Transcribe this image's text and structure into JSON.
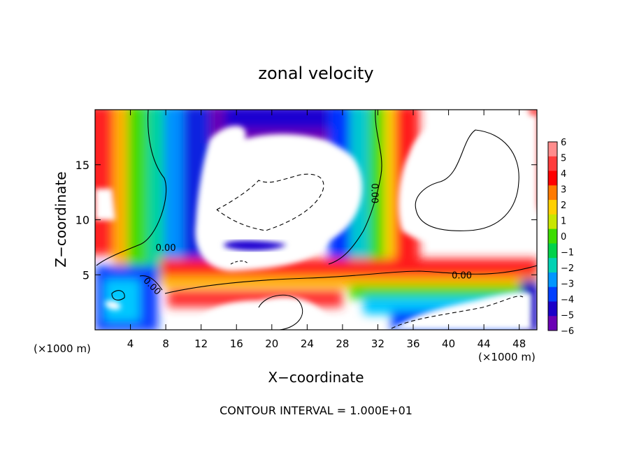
{
  "chart_data": {
    "type": "heatmap",
    "title": "zonal velocity",
    "xlabel": "X−coordinate",
    "ylabel": "Z−coordinate",
    "x_unit_left": "(×1000 m)",
    "x_unit_right": "(×1000 m)",
    "xlim": [
      0,
      50
    ],
    "ylim": [
      0,
      20
    ],
    "x_ticks": [
      4,
      8,
      12,
      16,
      20,
      24,
      28,
      32,
      36,
      40,
      44,
      48
    ],
    "y_ticks": [
      5,
      10,
      15
    ],
    "colorbar": {
      "min": -6,
      "max": 6,
      "labels": [
        "6",
        "5",
        "4",
        "3",
        "2",
        "1",
        "0",
        "−1",
        "−2",
        "−3",
        "−4",
        "−5",
        "−6"
      ],
      "colors": [
        "#ff8c8c",
        "#ff3c3c",
        "#ff0000",
        "#ff7a00",
        "#ffd000",
        "#c8e600",
        "#3cdc00",
        "#00d24a",
        "#00d2b4",
        "#0096ff",
        "#0040ff",
        "#1a00c8",
        "#6a00b4"
      ]
    },
    "contour_labels": [
      {
        "text": "0.00",
        "x": 8,
        "y": 7.5
      },
      {
        "text": "0.00",
        "x": 6.5,
        "y": 4
      },
      {
        "text": "0.00",
        "x": 31.7,
        "y": 12.4
      },
      {
        "text": "0.00",
        "x": 41.5,
        "y": 5
      }
    ],
    "annotation": "CONTOUR INTERVAL = 1.000E+01"
  }
}
